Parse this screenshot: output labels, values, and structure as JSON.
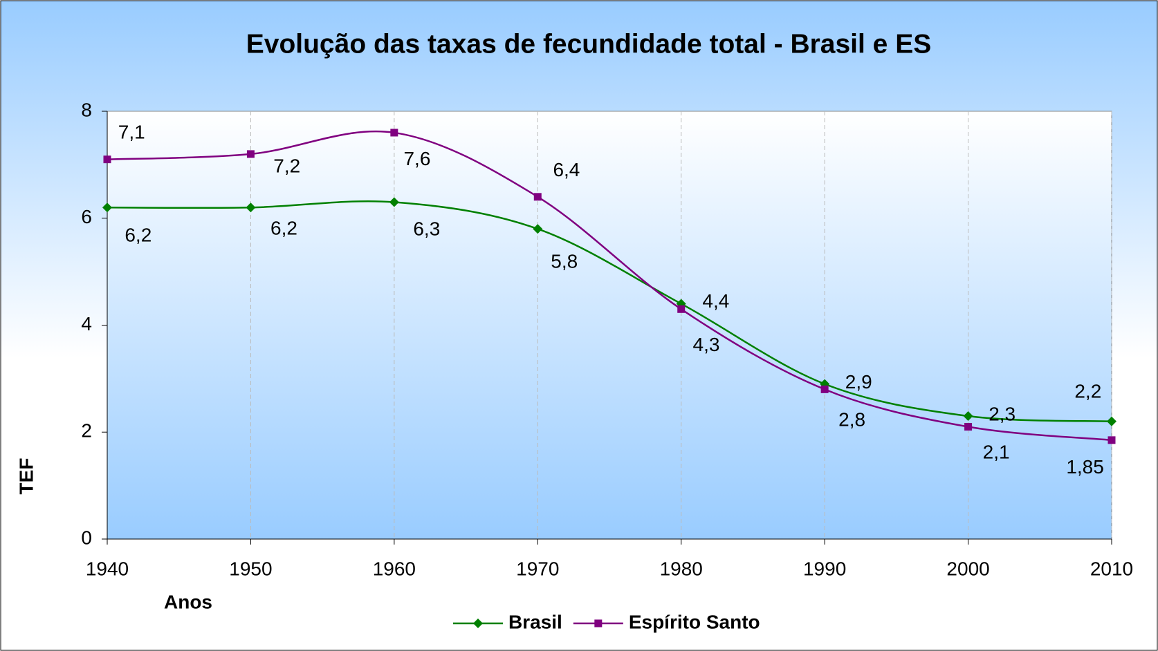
{
  "chart_data": {
    "type": "line",
    "title": "Evolução das taxas de fecundidade total - Brasil e ES",
    "xlabel": "Anos",
    "ylabel": "TEF",
    "x": [
      1940,
      1950,
      1960,
      1970,
      1980,
      1990,
      2000,
      2010
    ],
    "series": [
      {
        "name": "Brasil",
        "color": "#008000",
        "marker": "diamond",
        "values": [
          6.2,
          6.2,
          6.3,
          5.8,
          4.4,
          2.9,
          2.3,
          2.2
        ],
        "value_labels": [
          "6,2",
          "6,2",
          "6,3",
          "5,8",
          "4,4",
          "2,9",
          "2,3",
          "2,2"
        ]
      },
      {
        "name": "Espírito Santo",
        "color": "#800080",
        "marker": "square",
        "values": [
          7.1,
          7.2,
          7.6,
          6.4,
          4.3,
          2.8,
          2.1,
          1.85
        ],
        "value_labels": [
          "7,1",
          "7,2",
          "7,6",
          "6,4",
          "4,3",
          "2,8",
          "2,1",
          "1,85"
        ]
      }
    ],
    "xlim": [
      1940,
      2010
    ],
    "xticks": [
      1940,
      1950,
      1960,
      1970,
      1980,
      1990,
      2000,
      2010
    ],
    "ylim": [
      0,
      8
    ],
    "yticks": [
      0,
      2,
      4,
      6,
      8
    ],
    "grid": "x",
    "legend": "bottom"
  }
}
